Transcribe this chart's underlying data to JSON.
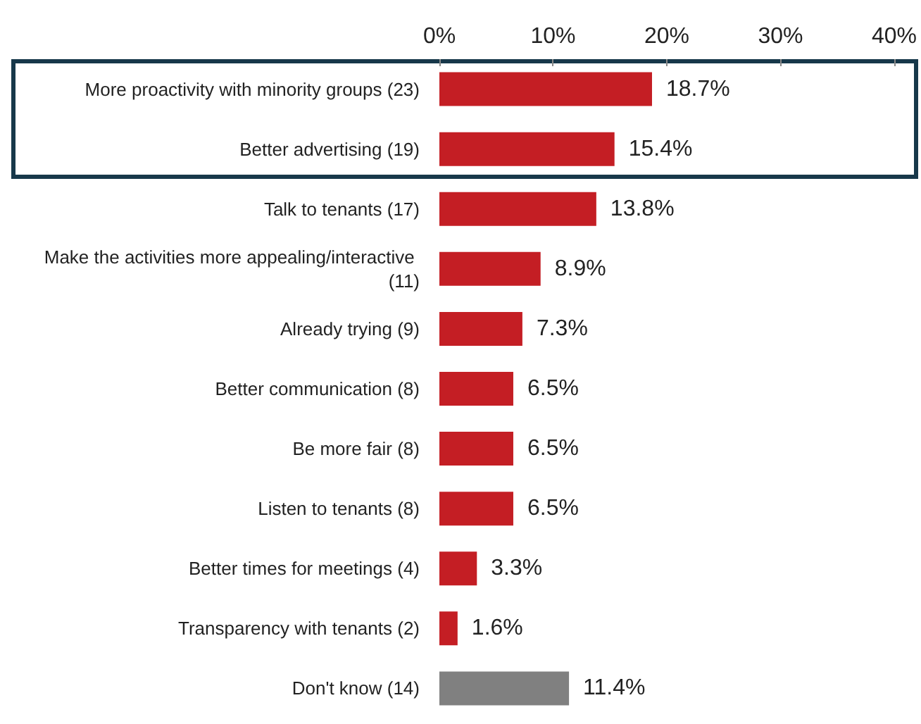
{
  "chart_data": {
    "type": "bar",
    "orientation": "horizontal",
    "categories": [
      "More proactivity with minority groups (23)",
      "Better advertising (19)",
      "Talk to tenants (17)",
      "Make the activities more appealing/interactive (11)",
      "Already trying (9)",
      "Better communication (8)",
      "Be more fair (8)",
      "Listen to tenants (8)",
      "Better times for meetings (4)",
      "Transparency with tenants (2)",
      "Don't know (14)"
    ],
    "values": [
      18.7,
      15.4,
      13.8,
      8.9,
      7.3,
      6.5,
      6.5,
      6.5,
      3.3,
      1.6,
      11.4
    ],
    "value_labels": [
      "18.7%",
      "15.4%",
      "13.8%",
      "8.9%",
      "7.3%",
      "6.5%",
      "6.5%",
      "6.5%",
      "3.3%",
      "1.6%",
      "11.4%"
    ],
    "colors": [
      "#c41e24",
      "#c41e24",
      "#c41e24",
      "#c41e24",
      "#c41e24",
      "#c41e24",
      "#c41e24",
      "#c41e24",
      "#c41e24",
      "#c41e24",
      "#808080"
    ],
    "xlim": [
      0,
      40
    ],
    "xticks": [
      {
        "value": 0,
        "label": "0%"
      },
      {
        "value": 10,
        "label": "10%"
      },
      {
        "value": 20,
        "label": "20%"
      },
      {
        "value": 30,
        "label": "30%"
      },
      {
        "value": 40,
        "label": "40%"
      }
    ],
    "grid": false
  }
}
